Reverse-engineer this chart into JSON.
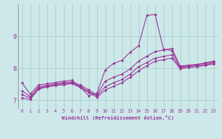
{
  "xlabel": "Windchill (Refroidissement éolien,°C)",
  "bg_color": "#cce8e8",
  "grid_color": "#aacccc",
  "line_color": "#993399",
  "xlim": [
    -0.5,
    23.5
  ],
  "ylim": [
    6.75,
    10.0
  ],
  "yticks": [
    7,
    8,
    9
  ],
  "xtick_labels": [
    "0",
    "1",
    "2",
    "3",
    "4",
    "5",
    "6",
    "7",
    "8",
    "9",
    "10",
    "11",
    "12",
    "13",
    "14",
    "15",
    "16",
    "17",
    "18",
    "19",
    "20",
    "21",
    "22",
    "23"
  ],
  "lines": [
    {
      "x": [
        0,
        1,
        2,
        3,
        4,
        5,
        6,
        7,
        8,
        9,
        10,
        11,
        12,
        13,
        14,
        15,
        16,
        17,
        18,
        19,
        20,
        21,
        22,
        23
      ],
      "y": [
        7.55,
        7.2,
        7.48,
        7.52,
        7.56,
        7.6,
        7.63,
        7.42,
        7.15,
        7.22,
        7.95,
        8.15,
        8.25,
        8.5,
        8.7,
        9.65,
        9.68,
        8.6,
        8.55,
        8.05,
        8.08,
        8.12,
        8.17,
        8.22
      ]
    },
    {
      "x": [
        0,
        1,
        2,
        3,
        4,
        5,
        6,
        7,
        8,
        9,
        10,
        11,
        12,
        13,
        14,
        15,
        16,
        17,
        18,
        19,
        20,
        21,
        22,
        23
      ],
      "y": [
        7.3,
        7.12,
        7.42,
        7.47,
        7.52,
        7.55,
        7.58,
        7.48,
        7.33,
        7.18,
        7.6,
        7.72,
        7.82,
        7.98,
        8.22,
        8.38,
        8.52,
        8.57,
        8.62,
        8.07,
        8.1,
        8.12,
        8.16,
        8.2
      ]
    },
    {
      "x": [
        0,
        1,
        2,
        3,
        4,
        5,
        6,
        7,
        8,
        9,
        10,
        11,
        12,
        13,
        14,
        15,
        16,
        17,
        18,
        19,
        20,
        21,
        22,
        23
      ],
      "y": [
        7.18,
        7.08,
        7.38,
        7.44,
        7.49,
        7.52,
        7.55,
        7.44,
        7.28,
        7.14,
        7.42,
        7.55,
        7.65,
        7.82,
        8.05,
        8.18,
        8.32,
        8.37,
        8.42,
        8.02,
        8.06,
        8.08,
        8.12,
        8.16
      ]
    },
    {
      "x": [
        0,
        1,
        2,
        3,
        4,
        5,
        6,
        7,
        8,
        9,
        10,
        11,
        12,
        13,
        14,
        15,
        16,
        17,
        18,
        19,
        20,
        21,
        22,
        23
      ],
      "y": [
        7.08,
        7.03,
        7.35,
        7.42,
        7.46,
        7.49,
        7.52,
        7.4,
        7.25,
        7.1,
        7.32,
        7.44,
        7.55,
        7.72,
        7.92,
        8.08,
        8.22,
        8.27,
        8.32,
        7.99,
        8.02,
        8.05,
        8.09,
        8.13
      ]
    }
  ]
}
